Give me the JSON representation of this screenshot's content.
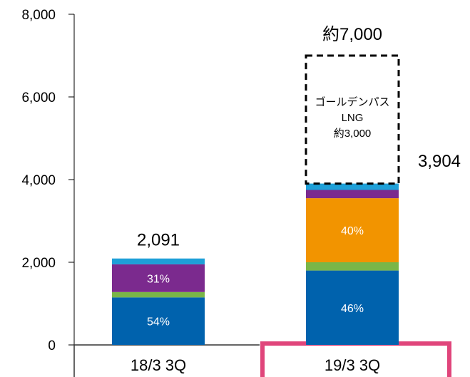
{
  "chart_data": {
    "type": "bar",
    "stacked": true,
    "categories": [
      "18/3 3Q",
      "19/3 3Q"
    ],
    "highlight_category": "19/3 3Q",
    "highlight_color": "#e0457b",
    "ylim": [
      0,
      8000
    ],
    "yticks": [
      "0",
      "2,000",
      "4,000",
      "6,000",
      "8,000"
    ],
    "ytick_values": [
      0,
      2000,
      4000,
      6000,
      8000
    ],
    "series": [
      {
        "color": "#0062ad",
        "values": [
          1150,
          1800
        ],
        "labels": [
          "54%",
          "46%"
        ]
      },
      {
        "color": "#7ab648",
        "values": [
          130,
          200
        ],
        "labels": [
          "",
          ""
        ]
      },
      {
        "color": "#f29400",
        "values": [
          0,
          1550
        ],
        "labels": [
          "",
          "40%"
        ]
      },
      {
        "color": "#7b2a8e",
        "values": [
          670,
          200
        ],
        "labels": [
          "31%",
          ""
        ]
      },
      {
        "color": "#1ea0d8",
        "values": [
          141,
          154
        ],
        "labels": [
          "",
          ""
        ]
      }
    ],
    "totals": [
      "2,091",
      "3,904"
    ],
    "projection": {
      "category": "19/3 3Q",
      "from": 3904,
      "to": 7000,
      "total_label": "約7,000",
      "box_lines": [
        "ゴールデンパス",
        "LNG",
        "約3,000"
      ]
    }
  }
}
